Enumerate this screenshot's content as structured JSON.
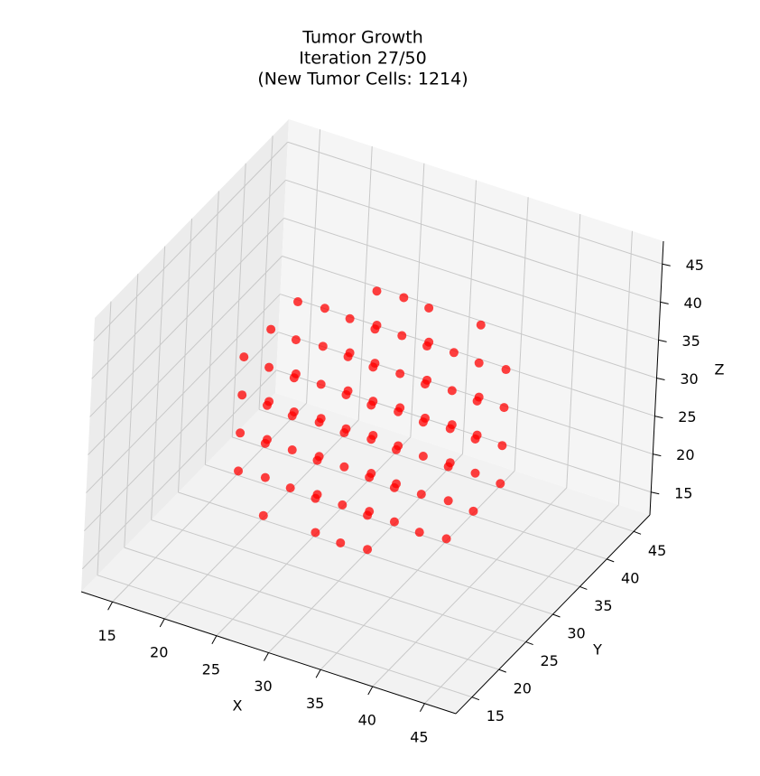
{
  "chart_data": {
    "type": "scatter3d",
    "title": [
      "Tumor Growth",
      "Iteration 27/50",
      "(New Tumor Cells: 1214)"
    ],
    "xlabel": "X",
    "ylabel": "Y",
    "zlabel": "Z",
    "color": "#ff0000",
    "grid": true,
    "xlim": [
      12,
      48
    ],
    "ylim": [
      12,
      48
    ],
    "zlim": [
      12,
      48
    ],
    "xticks": [
      15,
      20,
      25,
      30,
      35,
      40,
      45
    ],
    "yticks": [
      15,
      20,
      25,
      30,
      35,
      40,
      45
    ],
    "zticks": [
      15,
      20,
      25,
      30,
      35,
      40,
      45
    ],
    "points": [
      [
        30,
        30,
        17
      ],
      [
        25,
        30,
        17
      ],
      [
        35,
        30,
        17
      ],
      [
        30,
        25,
        17
      ],
      [
        30,
        35,
        17
      ],
      [
        20,
        25,
        22
      ],
      [
        20,
        30,
        22
      ],
      [
        20,
        35,
        22
      ],
      [
        25,
        20,
        22
      ],
      [
        25,
        25,
        22
      ],
      [
        25,
        30,
        22
      ],
      [
        25,
        35,
        22
      ],
      [
        25,
        40,
        22
      ],
      [
        30,
        20,
        22
      ],
      [
        30,
        25,
        22
      ],
      [
        30,
        30,
        22
      ],
      [
        30,
        35,
        22
      ],
      [
        30,
        40,
        22
      ],
      [
        35,
        20,
        22
      ],
      [
        35,
        25,
        22
      ],
      [
        35,
        30,
        22
      ],
      [
        35,
        35,
        22
      ],
      [
        35,
        40,
        22
      ],
      [
        40,
        25,
        22
      ],
      [
        40,
        30,
        22
      ],
      [
        40,
        35,
        22
      ],
      [
        20,
        25,
        27
      ],
      [
        20,
        30,
        27
      ],
      [
        20,
        35,
        27
      ],
      [
        25,
        20,
        27
      ],
      [
        25,
        25,
        27
      ],
      [
        25,
        30,
        27
      ],
      [
        25,
        35,
        27
      ],
      [
        25,
        40,
        27
      ],
      [
        30,
        20,
        27
      ],
      [
        30,
        25,
        27
      ],
      [
        30,
        30,
        27
      ],
      [
        30,
        35,
        27
      ],
      [
        30,
        40,
        27
      ],
      [
        35,
        20,
        27
      ],
      [
        35,
        25,
        27
      ],
      [
        35,
        30,
        27
      ],
      [
        35,
        35,
        27
      ],
      [
        35,
        40,
        27
      ],
      [
        40,
        25,
        27
      ],
      [
        40,
        30,
        27
      ],
      [
        40,
        35,
        27
      ],
      [
        20,
        25,
        32
      ],
      [
        20,
        30,
        32
      ],
      [
        20,
        35,
        32
      ],
      [
        25,
        20,
        32
      ],
      [
        25,
        25,
        32
      ],
      [
        25,
        30,
        32
      ],
      [
        25,
        35,
        32
      ],
      [
        25,
        40,
        32
      ],
      [
        30,
        20,
        32
      ],
      [
        30,
        25,
        32
      ],
      [
        30,
        30,
        32
      ],
      [
        30,
        35,
        32
      ],
      [
        30,
        40,
        32
      ],
      [
        35,
        20,
        32
      ],
      [
        35,
        25,
        32
      ],
      [
        35,
        30,
        32
      ],
      [
        35,
        35,
        32
      ],
      [
        35,
        40,
        32
      ],
      [
        40,
        25,
        32
      ],
      [
        40,
        30,
        32
      ],
      [
        40,
        35,
        32
      ],
      [
        20,
        25,
        37
      ],
      [
        20,
        30,
        37
      ],
      [
        20,
        35,
        37
      ],
      [
        25,
        20,
        37
      ],
      [
        25,
        25,
        37
      ],
      [
        25,
        30,
        37
      ],
      [
        25,
        35,
        37
      ],
      [
        25,
        40,
        37
      ],
      [
        30,
        20,
        37
      ],
      [
        30,
        25,
        37
      ],
      [
        30,
        30,
        37
      ],
      [
        30,
        35,
        37
      ],
      [
        30,
        40,
        37
      ],
      [
        35,
        20,
        37
      ],
      [
        35,
        25,
        37
      ],
      [
        35,
        30,
        37
      ],
      [
        35,
        35,
        37
      ],
      [
        35,
        40,
        37
      ],
      [
        40,
        25,
        37
      ],
      [
        40,
        30,
        37
      ],
      [
        40,
        35,
        37
      ],
      [
        30,
        30,
        42
      ],
      [
        25,
        30,
        42
      ],
      [
        35,
        30,
        42
      ],
      [
        30,
        25,
        42
      ],
      [
        30,
        35,
        42
      ]
    ]
  }
}
